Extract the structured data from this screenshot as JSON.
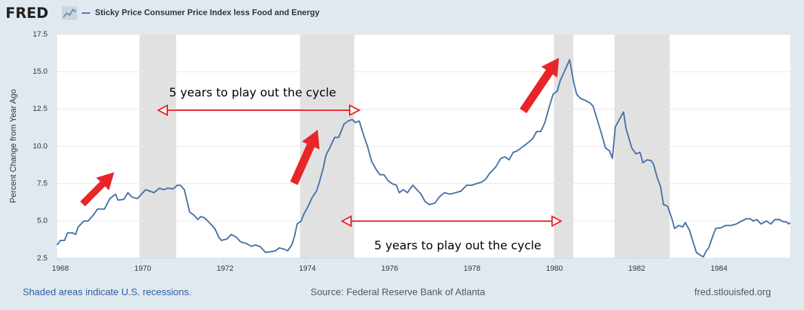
{
  "header": {
    "logo": "FRED"
  },
  "chart_data": {
    "type": "line",
    "y_label": "Percent Change from Year Ago",
    "x": [
      1967.97,
      1968.05,
      1968.15,
      1968.22,
      1968.35,
      1968.42,
      1968.48,
      1968.62,
      1968.72,
      1968.85,
      1968.95,
      1969.12,
      1969.25,
      1969.39,
      1969.45,
      1969.59,
      1969.69,
      1969.79,
      1969.92,
      1970.02,
      1970.12,
      1970.22,
      1970.32,
      1970.46,
      1970.56,
      1970.66,
      1970.79,
      1970.89,
      1970.96,
      1971.06,
      1971.19,
      1971.29,
      1971.39,
      1971.46,
      1971.56,
      1971.7,
      1971.8,
      1971.9,
      1971.96,
      1972.1,
      1972.2,
      1972.33,
      1972.43,
      1972.56,
      1972.7,
      1972.77,
      1972.9,
      1973.03,
      1973.17,
      1973.27,
      1973.37,
      1973.5,
      1973.57,
      1973.67,
      1973.74,
      1973.8,
      1973.9,
      1973.97,
      1974.07,
      1974.17,
      1974.27,
      1974.34,
      1974.44,
      1974.5,
      1974.61,
      1974.71,
      1974.81,
      1974.94,
      1975.04,
      1975.14,
      1975.21,
      1975.31,
      1975.41,
      1975.51,
      1975.61,
      1975.71,
      1975.81,
      1975.91,
      1976.01,
      1976.11,
      1976.21,
      1976.28,
      1976.38,
      1976.48,
      1976.61,
      1976.71,
      1976.81,
      1976.91,
      1977.01,
      1977.15,
      1977.25,
      1977.38,
      1977.51,
      1977.65,
      1977.78,
      1977.92,
      1978.05,
      1978.15,
      1978.28,
      1978.38,
      1978.48,
      1978.62,
      1978.75,
      1978.85,
      1978.95,
      1979.05,
      1979.15,
      1979.29,
      1979.39,
      1979.52,
      1979.62,
      1979.72,
      1979.82,
      1979.92,
      1980.02,
      1980.12,
      1980.19,
      1980.29,
      1980.42,
      1980.52,
      1980.59,
      1980.69,
      1980.79,
      1980.92,
      1980.99,
      1981.09,
      1981.19,
      1981.29,
      1981.39,
      1981.46,
      1981.53,
      1981.63,
      1981.73,
      1981.79,
      1981.93,
      1982.03,
      1982.13,
      1982.2,
      1982.3,
      1982.4,
      1982.46,
      1982.56,
      1982.63,
      1982.7,
      1982.8,
      1982.9,
      1982.97,
      1983.07,
      1983.17,
      1983.23,
      1983.33,
      1983.43,
      1983.5,
      1983.6,
      1983.67,
      1983.74,
      1983.8,
      1983.9,
      1983.97,
      1984.1,
      1984.2,
      1984.34,
      1984.47,
      1984.6,
      1984.71,
      1984.81,
      1984.88,
      1984.97,
      1985.07,
      1985.2,
      1985.31,
      1985.41,
      1985.51,
      1985.61,
      1985.68,
      1985.74,
      1985.78
    ],
    "series": [
      {
        "name": "Sticky Price Consumer Price Index less Food and Energy",
        "color": "#4572a7",
        "values": [
          3.4,
          3.7,
          3.7,
          4.2,
          4.2,
          4.1,
          4.6,
          5.0,
          5.0,
          5.4,
          5.8,
          5.8,
          6.5,
          6.8,
          6.4,
          6.45,
          6.9,
          6.6,
          6.5,
          6.8,
          7.1,
          7.0,
          6.9,
          7.2,
          7.1,
          7.2,
          7.15,
          7.4,
          7.4,
          7.1,
          5.6,
          5.4,
          5.1,
          5.3,
          5.2,
          4.8,
          4.5,
          3.9,
          3.7,
          3.8,
          4.1,
          3.9,
          3.6,
          3.5,
          3.3,
          3.4,
          3.3,
          2.9,
          2.95,
          3.0,
          3.2,
          3.1,
          3.0,
          3.4,
          4.0,
          4.8,
          5.0,
          5.5,
          6.0,
          6.6,
          7.0,
          7.6,
          8.6,
          9.4,
          10.0,
          10.6,
          10.6,
          11.5,
          11.7,
          11.8,
          11.6,
          11.7,
          10.8,
          10.0,
          9.0,
          8.5,
          8.1,
          8.1,
          7.7,
          7.5,
          7.4,
          6.9,
          7.1,
          6.9,
          7.4,
          7.1,
          6.8,
          6.3,
          6.1,
          6.2,
          6.6,
          6.9,
          6.8,
          6.9,
          7.0,
          7.4,
          7.4,
          7.5,
          7.6,
          7.8,
          8.2,
          8.6,
          9.2,
          9.3,
          9.1,
          9.6,
          9.7,
          10.0,
          10.2,
          10.5,
          11.0,
          11.0,
          11.6,
          12.6,
          13.5,
          13.7,
          14.4,
          15.0,
          15.8,
          14.3,
          13.5,
          13.2,
          13.1,
          12.9,
          12.7,
          11.8,
          10.9,
          9.9,
          9.7,
          9.2,
          11.3,
          11.8,
          12.3,
          11.2,
          9.9,
          9.5,
          9.6,
          8.9,
          9.1,
          9.05,
          8.8,
          7.8,
          7.3,
          6.1,
          6.0,
          5.2,
          4.5,
          4.7,
          4.6,
          4.9,
          4.4,
          3.5,
          2.9,
          2.7,
          2.6,
          3.0,
          3.2,
          4.0,
          4.5,
          4.55,
          4.7,
          4.7,
          4.8,
          5.0,
          5.15,
          5.15,
          5.0,
          5.1,
          4.8,
          5.0,
          4.8,
          5.1,
          5.1,
          4.95,
          4.95,
          4.8,
          4.9
        ]
      }
    ],
    "xlim": [
      1967.97,
      1985.78
    ],
    "ylim": [
      2.5,
      17.5
    ],
    "xticks": [
      1968,
      1970,
      1972,
      1974,
      1976,
      1978,
      1980,
      1982,
      1984
    ],
    "yticks": [
      2.5,
      {
        "value": 5,
        "label": "5.0"
      },
      7.5,
      {
        "value": 10,
        "label": "10.0"
      },
      12.5,
      {
        "value": 15,
        "label": "15.0"
      },
      17.5
    ],
    "grid": true,
    "recessions": [
      [
        1969.97,
        1970.86
      ],
      [
        1973.87,
        1975.19
      ],
      [
        1980.04,
        1980.51
      ],
      [
        1981.51,
        1982.85
      ]
    ],
    "annotations": [
      "5 years to play out the cycle",
      "5 years to play out the cycle"
    ]
  },
  "footer": {
    "note": "Shaded areas indicate U.S. recessions.",
    "source": "Source: Federal Reserve Bank of Atlanta",
    "site": "fred.stlouisfed.org"
  }
}
